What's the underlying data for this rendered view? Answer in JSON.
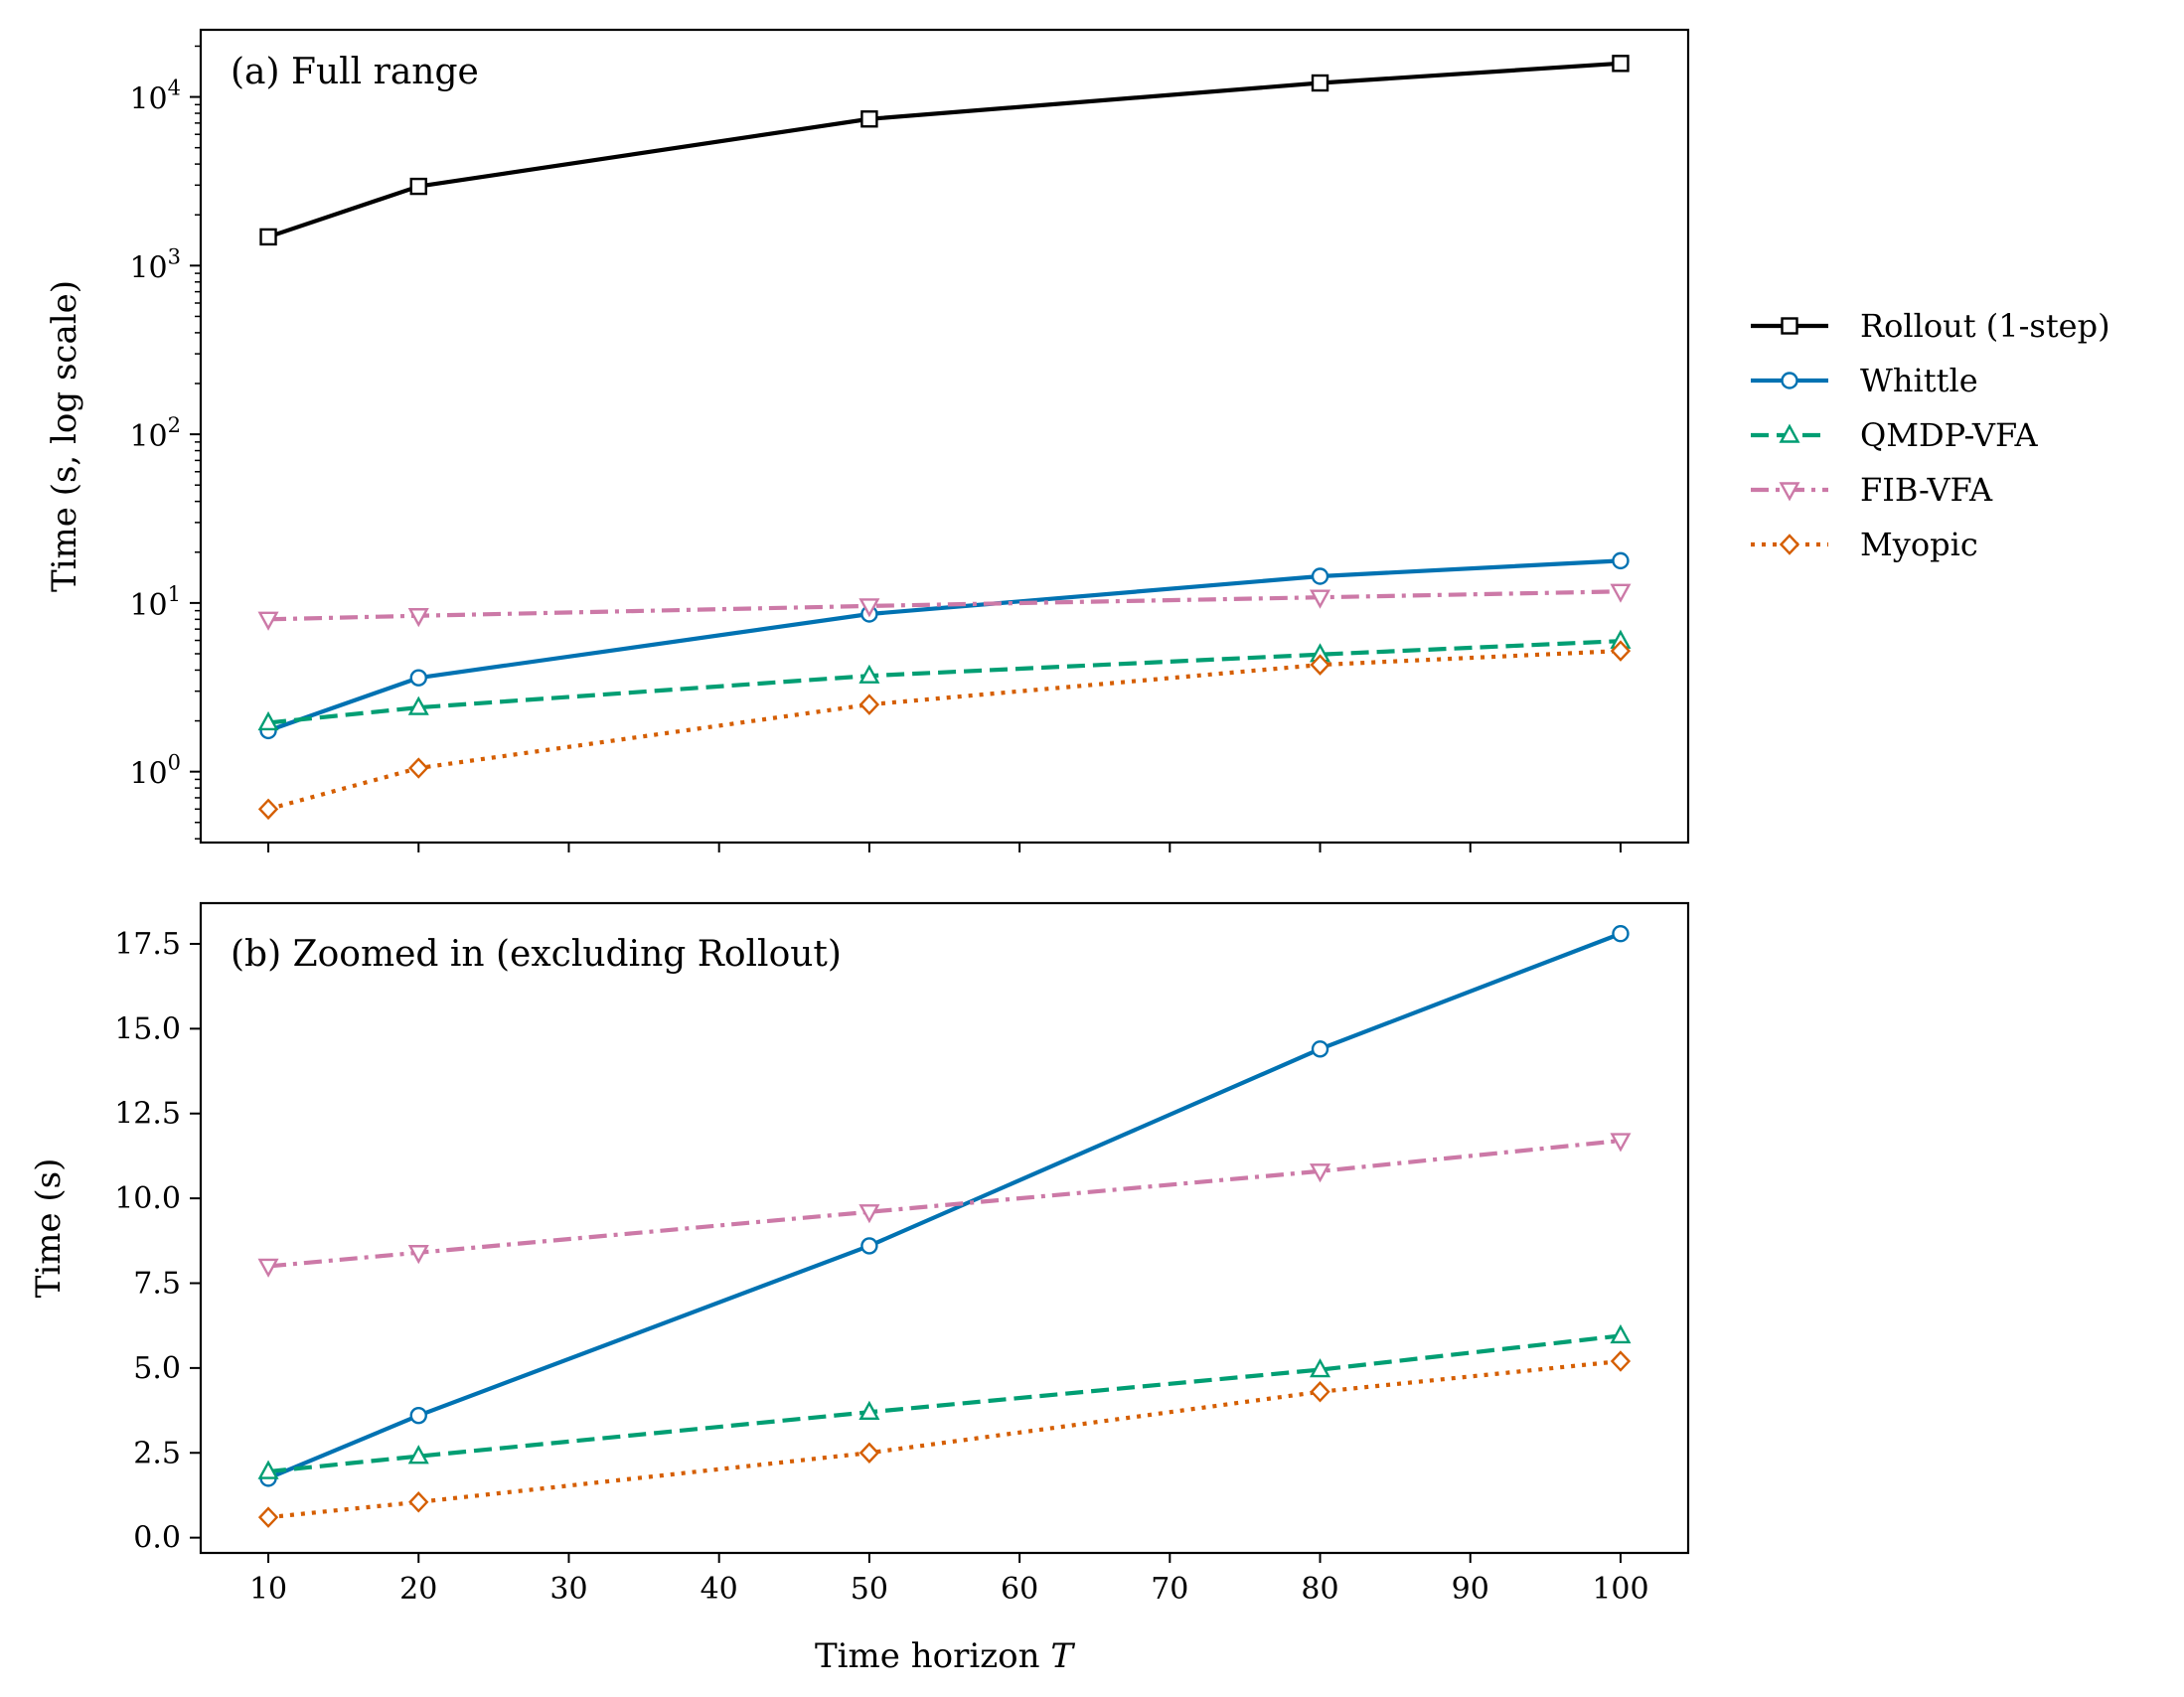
{
  "chart_data": [
    {
      "type": "line",
      "panel": "a",
      "title": "(a) Full range",
      "xlabel": "",
      "ylabel": "Time (s, log scale)",
      "yscale": "log",
      "xlim": [
        5.5,
        104.5
      ],
      "ylim": [
        0.38,
        25000
      ],
      "xticks": [
        10,
        20,
        30,
        40,
        50,
        60,
        70,
        80,
        90,
        100
      ],
      "yticks": [
        {
          "value": 1,
          "base": "10",
          "exp": "0"
        },
        {
          "value": 10,
          "base": "10",
          "exp": "1"
        },
        {
          "value": 100,
          "base": "10",
          "exp": "2"
        },
        {
          "value": 1000,
          "base": "10",
          "exp": "3"
        },
        {
          "value": 10000,
          "base": "10",
          "exp": "4"
        }
      ],
      "x": [
        10,
        20,
        50,
        80,
        100
      ],
      "series": [
        {
          "name": "Rollout (1-step)",
          "key": "rollout",
          "values": [
            1480,
            2950,
            7400,
            12100,
            15800
          ]
        },
        {
          "name": "Whittle",
          "key": "whittle",
          "values": [
            1.75,
            3.6,
            8.6,
            14.4,
            17.8
          ]
        },
        {
          "name": "QMDP-VFA",
          "key": "qmdp",
          "values": [
            1.95,
            2.4,
            3.7,
            4.95,
            5.95
          ]
        },
        {
          "name": "FIB-VFA",
          "key": "fib",
          "values": [
            8.0,
            8.4,
            9.6,
            10.8,
            11.7
          ]
        },
        {
          "name": "Myopic",
          "key": "myopic",
          "values": [
            0.6,
            1.05,
            2.5,
            4.3,
            5.2
          ]
        }
      ]
    },
    {
      "type": "line",
      "panel": "b",
      "title": "(b) Zoomed in (excluding Rollout)",
      "xlabel": "Time horizon",
      "xlabel_var": "T",
      "ylabel": "Time (s)",
      "yscale": "linear",
      "xlim": [
        5.5,
        104.5
      ],
      "ylim": [
        -0.45,
        18.7
      ],
      "xticks": [
        10,
        20,
        30,
        40,
        50,
        60,
        70,
        80,
        90,
        100
      ],
      "ytick_values": [
        0,
        2.5,
        5,
        7.5,
        10,
        12.5,
        15,
        17.5
      ],
      "ytick_labels": [
        "0.0",
        "2.5",
        "5.0",
        "7.5",
        "10.0",
        "12.5",
        "15.0",
        "17.5"
      ],
      "x": [
        10,
        20,
        50,
        80,
        100
      ],
      "series": [
        {
          "name": "Whittle",
          "key": "whittle",
          "values": [
            1.75,
            3.6,
            8.6,
            14.4,
            17.8
          ]
        },
        {
          "name": "QMDP-VFA",
          "key": "qmdp",
          "values": [
            1.95,
            2.4,
            3.7,
            4.95,
            5.95
          ]
        },
        {
          "name": "FIB-VFA",
          "key": "fib",
          "values": [
            8.0,
            8.4,
            9.6,
            10.8,
            11.7
          ]
        },
        {
          "name": "Myopic",
          "key": "myopic",
          "values": [
            0.6,
            1.05,
            2.5,
            4.3,
            5.2
          ]
        }
      ]
    }
  ],
  "legend": {
    "placement": "right of panel (a)",
    "entries": [
      {
        "label": "Rollout (1-step)",
        "key": "rollout"
      },
      {
        "label": "Whittle",
        "key": "whittle"
      },
      {
        "label": "QMDP-VFA",
        "key": "qmdp"
      },
      {
        "label": "FIB-VFA",
        "key": "fib"
      },
      {
        "label": "Myopic",
        "key": "myopic"
      }
    ]
  },
  "series_styles": {
    "rollout": {
      "color": "#000000",
      "dash": "solid",
      "marker": "square"
    },
    "whittle": {
      "color": "#0072b2",
      "dash": "solid",
      "marker": "circle"
    },
    "qmdp": {
      "color": "#009e73",
      "dash": "dashed",
      "marker": "triangle-up"
    },
    "fib": {
      "color": "#cc79a7",
      "dash": "dashdot",
      "marker": "triangle-down"
    },
    "myopic": {
      "color": "#d55e00",
      "dash": "dotted",
      "marker": "diamond"
    }
  }
}
